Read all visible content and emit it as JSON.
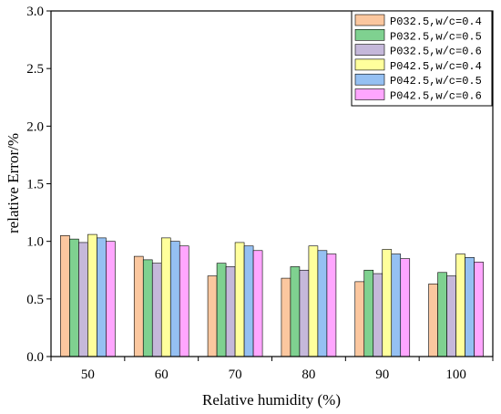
{
  "chart_data": {
    "type": "bar",
    "title": "",
    "xlabel": "Relative humidity (%)",
    "ylabel": "relative Error/%",
    "categories": [
      "50",
      "60",
      "70",
      "80",
      "90",
      "100"
    ],
    "ylim": [
      0,
      3.0
    ],
    "yticks": [
      "0.0",
      "0.5",
      "1.0",
      "1.5",
      "2.0",
      "2.5",
      "3.0"
    ],
    "grid": false,
    "legend_position": "top-right",
    "series": [
      {
        "name": "P032.5,w/c=0.4",
        "color": "#FBC79F",
        "values": [
          1.05,
          0.87,
          0.7,
          0.68,
          0.65,
          0.63
        ]
      },
      {
        "name": "P032.5,w/c=0.5",
        "color": "#7FD190",
        "values": [
          1.02,
          0.84,
          0.81,
          0.78,
          0.75,
          0.73
        ]
      },
      {
        "name": "P032.5,w/c=0.6",
        "color": "#C5B8DA",
        "values": [
          0.99,
          0.81,
          0.78,
          0.75,
          0.72,
          0.7
        ]
      },
      {
        "name": "P042.5,w/c=0.4",
        "color": "#FFFF9C",
        "values": [
          1.06,
          1.03,
          0.99,
          0.96,
          0.93,
          0.89
        ]
      },
      {
        "name": "P042.5,w/c=0.5",
        "color": "#95C0F2",
        "values": [
          1.03,
          1.0,
          0.96,
          0.92,
          0.89,
          0.86
        ]
      },
      {
        "name": "P042.5,w/c=0.6",
        "color": "#FFA6FF",
        "values": [
          1.0,
          0.96,
          0.92,
          0.89,
          0.85,
          0.82
        ]
      }
    ]
  }
}
